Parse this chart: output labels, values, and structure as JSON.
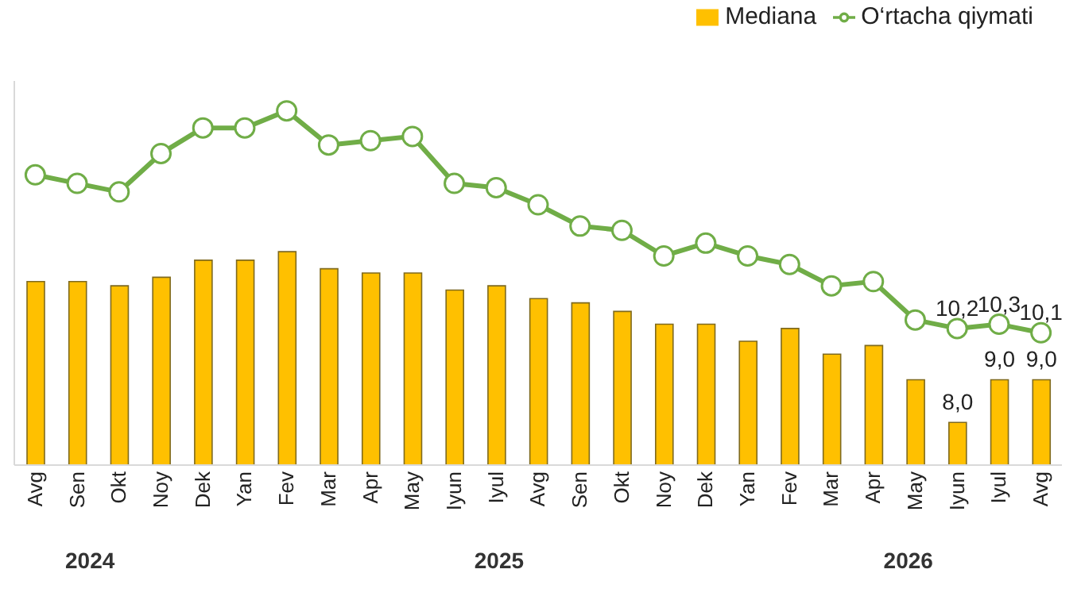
{
  "chart_data": {
    "type": "bar",
    "categories": [
      "Avg",
      "Sen",
      "Okt",
      "Noy",
      "Dek",
      "Yan",
      "Fev",
      "Mar",
      "Apr",
      "May",
      "Iyun",
      "Iyul",
      "Avg",
      "Sen",
      "Okt",
      "Noy",
      "Dek",
      "Yan",
      "Fev",
      "Mar",
      "Apr",
      "May",
      "Iyun",
      "Iyul",
      "Avg"
    ],
    "series": [
      {
        "name": "Mediana",
        "color": "#ffc000",
        "values": [
          11.3,
          11.3,
          11.2,
          11.4,
          11.8,
          11.8,
          12.0,
          11.6,
          11.5,
          11.5,
          11.1,
          11.2,
          10.9,
          10.8,
          10.6,
          10.3,
          10.3,
          9.9,
          10.2,
          9.6,
          9.8,
          9.0,
          8.0,
          9.0,
          9.0
        ],
        "value_labels": [
          null,
          null,
          null,
          null,
          null,
          null,
          null,
          null,
          null,
          null,
          null,
          null,
          null,
          null,
          null,
          null,
          null,
          null,
          null,
          null,
          null,
          null,
          "8,0",
          "9,0",
          "9,0"
        ]
      },
      {
        "name": "O‘rtacha qiymati",
        "type": "line",
        "color": "#70ad47",
        "values": [
          13.8,
          13.6,
          13.4,
          14.3,
          14.9,
          14.9,
          15.3,
          14.5,
          14.6,
          14.7,
          13.6,
          13.5,
          13.1,
          12.6,
          12.5,
          11.9,
          12.2,
          11.9,
          11.7,
          11.2,
          11.3,
          10.4,
          10.2,
          10.3,
          10.1
        ],
        "value_labels": [
          null,
          null,
          null,
          null,
          null,
          null,
          null,
          null,
          null,
          null,
          null,
          null,
          null,
          null,
          null,
          null,
          null,
          null,
          null,
          null,
          null,
          null,
          "10,2",
          "10,3",
          "10,1"
        ]
      }
    ],
    "ylim": [
      7,
      16
    ],
    "tick_labels": "x",
    "legend": "top right",
    "marker": "circle",
    "annotations": [
      "2024",
      "2025",
      "2026"
    ]
  }
}
